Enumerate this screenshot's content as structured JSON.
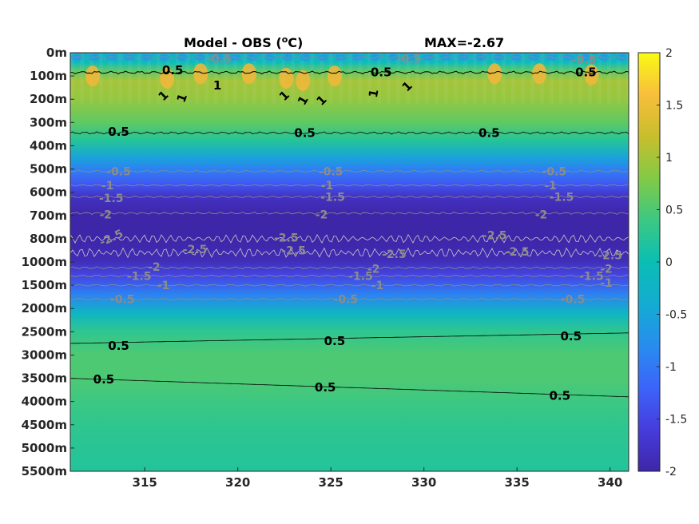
{
  "chart_data": {
    "type": "heatmap",
    "title": "Model - OBS (",
    "title_sup": "o",
    "title_unit": "C)",
    "max_label": "MAX=-2.67",
    "xlim": [
      311,
      341
    ],
    "x_ticks": [
      315,
      320,
      325,
      330,
      335,
      340
    ],
    "y_tick_labels": [
      "0m",
      "100m",
      "200m",
      "300m",
      "400m",
      "500m",
      "600m",
      "700m",
      "800m",
      "1000m",
      "1500m",
      "2000m",
      "2500m",
      "3000m",
      "3500m",
      "4000m",
      "4500m",
      "5000m",
      "5500m"
    ],
    "colorbar": {
      "clim": [
        -2,
        2
      ],
      "ticks": [
        2,
        1.5,
        1,
        0.5,
        0,
        -0.5,
        -1,
        -1.5,
        -2
      ],
      "colormap": "parula"
    },
    "depth_profile": [
      {
        "depth_index": 0.0,
        "value": -0.3
      },
      {
        "depth_index": 0.4,
        "value": -0.1
      },
      {
        "depth_index": 0.8,
        "value": 0.6
      },
      {
        "depth_index": 1.2,
        "value": 1.0
      },
      {
        "depth_index": 2.0,
        "value": 0.9
      },
      {
        "depth_index": 3.0,
        "value": 0.6
      },
      {
        "depth_index": 3.8,
        "value": 0.2
      },
      {
        "depth_index": 4.5,
        "value": -0.5
      },
      {
        "depth_index": 5.0,
        "value": -0.9
      },
      {
        "depth_index": 5.6,
        "value": -1.3
      },
      {
        "depth_index": 6.2,
        "value": -1.8
      },
      {
        "depth_index": 7.0,
        "value": -2.0
      },
      {
        "depth_index": 8.0,
        "value": -2.0
      },
      {
        "depth_index": 8.9,
        "value": -1.9
      },
      {
        "depth_index": 9.6,
        "value": -1.5
      },
      {
        "depth_index": 10.4,
        "value": -0.9
      },
      {
        "depth_index": 11.2,
        "value": -0.2
      },
      {
        "depth_index": 12.0,
        "value": 0.3
      },
      {
        "depth_index": 13.0,
        "value": 0.5
      },
      {
        "depth_index": 14.0,
        "value": 0.5
      },
      {
        "depth_index": 15.0,
        "value": 0.4
      },
      {
        "depth_index": 16.0,
        "value": 0.3
      },
      {
        "depth_index": 18.0,
        "value": 0.2
      }
    ],
    "contour_labels": [
      {
        "text": "0.5",
        "x": 316.5,
        "d": 0.75,
        "type": "pos"
      },
      {
        "text": "0.5",
        "x": 327.7,
        "d": 0.85,
        "type": "pos"
      },
      {
        "text": "0.5",
        "x": 338.7,
        "d": 0.85,
        "type": "pos"
      },
      {
        "text": "1",
        "x": 318.9,
        "d": 1.4,
        "type": "pos",
        "rot": 0
      },
      {
        "text": "1",
        "x": 316.0,
        "d": 1.85,
        "type": "pos",
        "rot": -45
      },
      {
        "text": "1",
        "x": 317.0,
        "d": 1.95,
        "type": "pos",
        "rot": -70
      },
      {
        "text": "1",
        "x": 322.5,
        "d": 1.85,
        "type": "pos",
        "rot": -45
      },
      {
        "text": "1",
        "x": 323.5,
        "d": 2.05,
        "type": "pos",
        "rot": -60
      },
      {
        "text": "1",
        "x": 324.5,
        "d": 2.05,
        "type": "pos",
        "rot": -45
      },
      {
        "text": "1",
        "x": 327.3,
        "d": 1.75,
        "type": "pos",
        "rot": -80
      },
      {
        "text": "1",
        "x": 329.1,
        "d": 1.45,
        "type": "pos",
        "rot": -45
      },
      {
        "text": "0.5",
        "x": 313.6,
        "d": 3.4,
        "type": "pos"
      },
      {
        "text": "0.5",
        "x": 323.6,
        "d": 3.45,
        "type": "pos"
      },
      {
        "text": "0.5",
        "x": 333.5,
        "d": 3.45,
        "type": "pos"
      },
      {
        "text": "-0.5",
        "x": 319.0,
        "d": 0.25,
        "type": "neg"
      },
      {
        "text": "-0.5",
        "x": 329.2,
        "d": 0.25,
        "type": "neg"
      },
      {
        "text": "-0.5",
        "x": 338.6,
        "d": 0.3,
        "type": "neg"
      },
      {
        "text": "-0.5",
        "x": 313.6,
        "d": 5.1,
        "type": "neg"
      },
      {
        "text": "-0.5",
        "x": 325.0,
        "d": 5.1,
        "type": "neg"
      },
      {
        "text": "-0.5",
        "x": 337.0,
        "d": 5.1,
        "type": "neg"
      },
      {
        "text": "-1",
        "x": 313.0,
        "d": 5.7,
        "type": "neg"
      },
      {
        "text": "-1",
        "x": 324.8,
        "d": 5.7,
        "type": "neg"
      },
      {
        "text": "-1",
        "x": 336.8,
        "d": 5.7,
        "type": "neg"
      },
      {
        "text": "-1.5",
        "x": 313.2,
        "d": 6.25,
        "type": "neg"
      },
      {
        "text": "-1.5",
        "x": 325.1,
        "d": 6.2,
        "type": "neg"
      },
      {
        "text": "-1.5",
        "x": 337.4,
        "d": 6.2,
        "type": "neg"
      },
      {
        "text": "-2",
        "x": 312.9,
        "d": 6.95,
        "type": "neg"
      },
      {
        "text": "-2",
        "x": 324.5,
        "d": 6.95,
        "type": "neg"
      },
      {
        "text": "-2",
        "x": 336.3,
        "d": 6.95,
        "type": "neg"
      },
      {
        "text": "-2.5",
        "x": 313.2,
        "d": 7.95,
        "type": "neg",
        "rot": -25
      },
      {
        "text": "-2.5",
        "x": 317.7,
        "d": 8.45,
        "type": "neg"
      },
      {
        "text": "-2.5",
        "x": 322.6,
        "d": 7.95,
        "type": "neg"
      },
      {
        "text": "-2.5",
        "x": 323.0,
        "d": 8.5,
        "type": "neg"
      },
      {
        "text": "-2.5",
        "x": 328.4,
        "d": 8.65,
        "type": "neg"
      },
      {
        "text": "-2.5",
        "x": 333.8,
        "d": 7.85,
        "type": "neg"
      },
      {
        "text": "-2.5",
        "x": 335.0,
        "d": 8.55,
        "type": "neg"
      },
      {
        "text": "-2.5",
        "x": 340.0,
        "d": 8.7,
        "type": "neg"
      },
      {
        "text": "-2",
        "x": 315.5,
        "d": 9.2,
        "type": "neg"
      },
      {
        "text": "-2",
        "x": 327.3,
        "d": 9.3,
        "type": "neg"
      },
      {
        "text": "-2",
        "x": 339.8,
        "d": 9.3,
        "type": "neg"
      },
      {
        "text": "-1.5",
        "x": 314.7,
        "d": 9.6,
        "type": "neg"
      },
      {
        "text": "-1.5",
        "x": 326.6,
        "d": 9.6,
        "type": "neg"
      },
      {
        "text": "-1.5",
        "x": 339.0,
        "d": 9.6,
        "type": "neg"
      },
      {
        "text": "-1",
        "x": 316.0,
        "d": 10.0,
        "type": "neg"
      },
      {
        "text": "-1",
        "x": 327.5,
        "d": 10.0,
        "type": "neg"
      },
      {
        "text": "-1",
        "x": 339.8,
        "d": 9.9,
        "type": "neg"
      },
      {
        "text": "-0.5",
        "x": 313.8,
        "d": 10.6,
        "type": "neg"
      },
      {
        "text": "-0.5",
        "x": 325.8,
        "d": 10.6,
        "type": "neg"
      },
      {
        "text": "-0.5",
        "x": 338.0,
        "d": 10.6,
        "type": "neg"
      },
      {
        "text": "0.5",
        "x": 313.6,
        "d": 12.6,
        "type": "pos"
      },
      {
        "text": "0.5",
        "x": 325.2,
        "d": 12.4,
        "type": "pos"
      },
      {
        "text": "0.5",
        "x": 337.9,
        "d": 12.2,
        "type": "pos"
      },
      {
        "text": "0.5",
        "x": 312.8,
        "d": 14.05,
        "type": "pos"
      },
      {
        "text": "0.5",
        "x": 324.7,
        "d": 14.4,
        "type": "pos"
      },
      {
        "text": "0.5",
        "x": 337.3,
        "d": 14.75,
        "type": "pos"
      }
    ]
  }
}
